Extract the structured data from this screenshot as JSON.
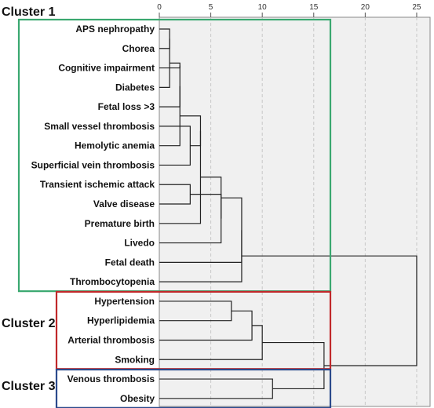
{
  "chart_data": {
    "type": "dendrogram",
    "orientation": "horizontal",
    "x_ticks": [
      0,
      5,
      10,
      15,
      20,
      25
    ],
    "xlim": [
      0,
      26.3
    ],
    "grid": true,
    "leaves": [
      "APS nephropathy",
      "Chorea",
      "Cognitive impairment",
      "Diabetes",
      "Fetal loss >3",
      "Small vessel thrombosis",
      "Hemolytic anemia",
      "Superficial vein thrombosis",
      "Transient ischemic attack",
      "Valve disease",
      "Premature birth",
      "Livedo",
      "Fetal death",
      "Thrombocytopenia",
      "Hypertension",
      "Hyperlipidemia",
      "Arterial thrombosis",
      "Smoking",
      "Venous thrombosis",
      "Obesity"
    ],
    "merges": [
      {
        "id": "m1",
        "children": [
          "L0",
          "L1"
        ],
        "height": 1.0
      },
      {
        "id": "m2",
        "children": [
          "m1",
          "L3"
        ],
        "height": 1.0
      },
      {
        "id": "m3",
        "children": [
          "m2",
          "L2"
        ],
        "height": 2.0
      },
      {
        "id": "m4",
        "children": [
          "m3",
          "L4"
        ],
        "height": 2.0
      },
      {
        "id": "m5",
        "children": [
          "L5",
          "L7"
        ],
        "height": 3.0
      },
      {
        "id": "m6",
        "children": [
          "m4",
          "L6"
        ],
        "height": 2.0
      },
      {
        "id": "m7",
        "children": [
          "m6",
          "m5"
        ],
        "height": 4.0
      },
      {
        "id": "m8",
        "children": [
          "L8",
          "L9"
        ],
        "height": 3.0
      },
      {
        "id": "m9",
        "children": [
          "m7",
          "L10"
        ],
        "height": 4.0
      },
      {
        "id": "m10",
        "children": [
          "m8",
          "L11"
        ],
        "height": 6.0
      },
      {
        "id": "m11",
        "children": [
          "m10",
          "m9"
        ],
        "height": 6.0
      },
      {
        "id": "m12",
        "children": [
          "m11",
          "L12"
        ],
        "height": 8.0
      },
      {
        "id": "m13",
        "children": [
          "m12",
          "L13"
        ],
        "height": 8.0
      },
      {
        "id": "m14",
        "children": [
          "L14",
          "L15"
        ],
        "height": 7.0
      },
      {
        "id": "m15",
        "children": [
          "m14",
          "L16"
        ],
        "height": 9.0
      },
      {
        "id": "m16",
        "children": [
          "m15",
          "L17"
        ],
        "height": 10.0
      },
      {
        "id": "m17",
        "children": [
          "L18",
          "L19"
        ],
        "height": 11.0
      },
      {
        "id": "m18",
        "children": [
          "m16",
          "m17"
        ],
        "height": 16.0
      },
      {
        "id": "m19",
        "children": [
          "m13",
          "m18"
        ],
        "height": 25.0
      }
    ],
    "clusters": [
      {
        "name": "Cluster 1",
        "from": 0,
        "to": 13,
        "color": "#3aa870"
      },
      {
        "name": "Cluster 2",
        "from": 14,
        "to": 17,
        "color": "#c0282a"
      },
      {
        "name": "Cluster 3",
        "from": 18,
        "to": 19,
        "color": "#2b4a8c"
      }
    ]
  }
}
